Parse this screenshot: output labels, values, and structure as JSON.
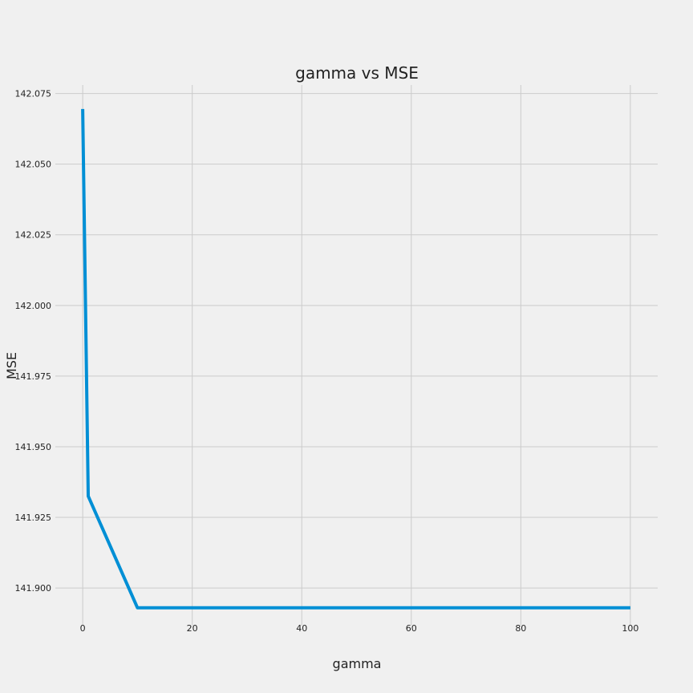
{
  "chart_data": {
    "type": "line",
    "title": "gamma vs MSE",
    "xlabel": "gamma",
    "ylabel": "MSE",
    "xlim": [
      -5,
      105
    ],
    "ylim": [
      141.8867,
      142.078
    ],
    "xticks": [
      0,
      20,
      40,
      60,
      80,
      100
    ],
    "yticks": [
      141.9,
      141.925,
      141.95,
      141.975,
      142.0,
      142.025,
      142.05,
      142.075
    ],
    "grid": true,
    "series": [
      {
        "color": "#008fd5",
        "x": [
          0,
          1,
          10,
          100
        ],
        "y": [
          142.0695,
          141.9325,
          141.893,
          141.893
        ]
      }
    ]
  }
}
